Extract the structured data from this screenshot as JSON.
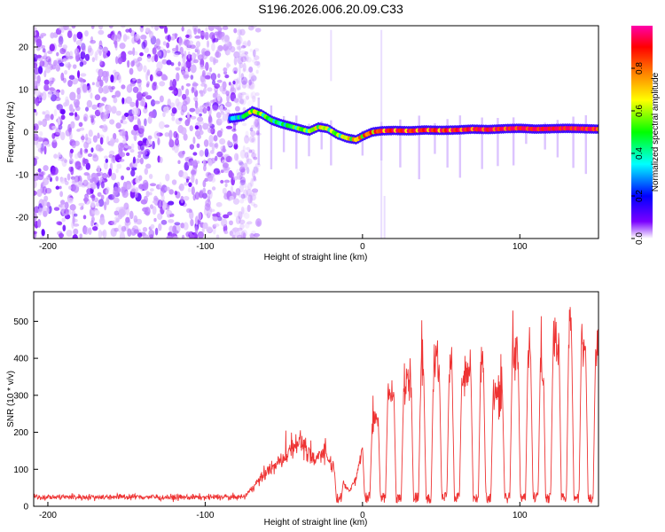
{
  "title": "S196.2026.006.20.09.C33",
  "chart_data": [
    {
      "type": "heatmap",
      "panel": "spectrogram",
      "xlabel": "Height of straight line (km)",
      "ylabel": "Frequency (Hz)",
      "xlim": [
        -209,
        150
      ],
      "ylim": [
        -25,
        25
      ],
      "x_ticks": [
        -200,
        -100,
        0,
        100
      ],
      "x_tick_labels": [
        "-200",
        "-100",
        "0",
        "100"
      ],
      "y_ticks": [
        -20,
        -10,
        0,
        10,
        20
      ],
      "y_tick_labels": [
        "-20",
        "-10",
        "0",
        "10",
        "20"
      ],
      "colorbar": {
        "label": "Normalized spectral amplitude",
        "range": [
          0,
          1
        ],
        "ticks": [
          0.0,
          0.2,
          0.4,
          0.6,
          0.8
        ],
        "tick_labels": [
          "0.0",
          "0.2",
          "0.4",
          "0.6",
          "0.8"
        ],
        "colormap": [
          "#ffffff",
          "#7a00ff",
          "#0000ff",
          "#00ffff",
          "#00ff00",
          "#ffff00",
          "#ff7f00",
          "#ff0000",
          "#ff00aa"
        ]
      },
      "noise_region": {
        "x_range": [
          -209,
          -72
        ],
        "level": 0.15
      },
      "signal_track": {
        "x": [
          -84,
          -76,
          -70,
          -64,
          -58,
          -52,
          -46,
          -40,
          -34,
          -28,
          -22,
          -16,
          -10,
          -4,
          0,
          6,
          12,
          20,
          30,
          40,
          50,
          60,
          70,
          80,
          90,
          100,
          110,
          120,
          130,
          140,
          150
        ],
        "freq_hz": [
          3.2,
          3.6,
          5.0,
          4.2,
          2.8,
          2.0,
          1.4,
          0.8,
          0.2,
          1.2,
          0.8,
          -0.6,
          -1.4,
          -1.8,
          -1.0,
          0.0,
          0.3,
          0.4,
          0.3,
          0.5,
          0.4,
          0.5,
          0.7,
          0.6,
          0.8,
          0.9,
          0.7,
          0.8,
          0.9,
          0.8,
          0.7
        ],
        "amplitude": [
          0.3,
          0.4,
          0.6,
          0.5,
          0.45,
          0.4,
          0.45,
          0.5,
          0.5,
          0.6,
          0.55,
          0.5,
          0.6,
          0.65,
          0.7,
          0.75,
          0.8,
          0.85,
          0.8,
          0.85,
          0.8,
          0.85,
          0.85,
          0.9,
          0.85,
          0.9,
          0.9,
          0.95,
          0.9,
          0.9,
          0.85
        ]
      }
    },
    {
      "type": "line",
      "panel": "snr",
      "xlabel": "Height of straight line (km)",
      "ylabel": "SNR (10 * v/v)",
      "xlim": [
        -209,
        150
      ],
      "ylim": [
        0,
        580
      ],
      "x_ticks": [
        -200,
        -100,
        0,
        100
      ],
      "x_tick_labels": [
        "-200",
        "-100",
        "0",
        "100"
      ],
      "y_ticks": [
        0,
        100,
        200,
        300,
        400,
        500
      ],
      "y_tick_labels": [
        "0",
        "100",
        "200",
        "300",
        "400",
        "500"
      ],
      "series": [
        {
          "name": "SNR",
          "color": "#ee3333",
          "x": [
            -209,
            -180,
            -150,
            -120,
            -90,
            -75,
            -68,
            -60,
            -55,
            -50,
            -45,
            -40,
            -35,
            -30,
            -25,
            -20,
            -15,
            -12,
            -8,
            -4,
            0,
            5,
            10,
            15,
            20,
            25,
            30,
            35,
            40,
            45,
            50,
            55,
            60,
            65,
            70,
            75,
            80,
            85,
            90,
            95,
            100,
            105,
            110,
            115,
            120,
            125,
            130,
            135,
            140,
            145,
            150
          ],
          "values": [
            25,
            25,
            26,
            24,
            25,
            25,
            60,
            95,
            110,
            130,
            160,
            180,
            140,
            120,
            155,
            115,
            90,
            60,
            40,
            80,
            160,
            200,
            250,
            300,
            320,
            300,
            340,
            380,
            360,
            380,
            360,
            370,
            380,
            340,
            360,
            390,
            370,
            300,
            320,
            390,
            420,
            400,
            420,
            410,
            440,
            450,
            470,
            460,
            440,
            430,
            420
          ]
        }
      ],
      "dropouts_x": [
        -15,
        3,
        13,
        23,
        34,
        42,
        52,
        60,
        72,
        80,
        92,
        102,
        110,
        118,
        128,
        136,
        145
      ]
    }
  ]
}
